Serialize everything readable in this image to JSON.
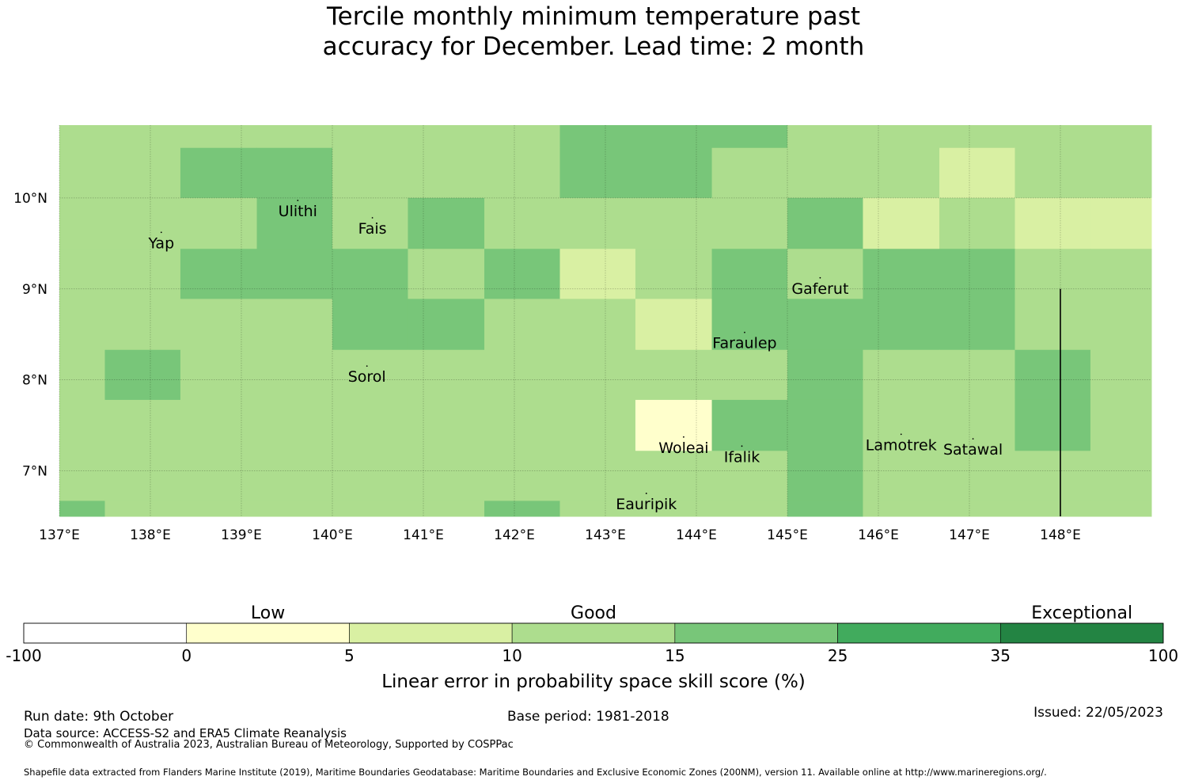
{
  "title": {
    "line1": "Tercile monthly minimum temperature past",
    "line2": "accuracy for December. Lead time: 2 month"
  },
  "map": {
    "lon_range": [
      137.0,
      149.0
    ],
    "lat_range": [
      6.5,
      10.8
    ],
    "lon_ticks": [
      {
        "value": 137,
        "label": "137°E"
      },
      {
        "value": 138,
        "label": "138°E"
      },
      {
        "value": 139,
        "label": "139°E"
      },
      {
        "value": 140,
        "label": "140°E"
      },
      {
        "value": 141,
        "label": "141°E"
      },
      {
        "value": 142,
        "label": "142°E"
      },
      {
        "value": 143,
        "label": "143°E"
      },
      {
        "value": 144,
        "label": "144°E"
      },
      {
        "value": 145,
        "label": "145°E"
      },
      {
        "value": 146,
        "label": "146°E"
      },
      {
        "value": 147,
        "label": "147°E"
      },
      {
        "value": 148,
        "label": "148°E"
      }
    ],
    "lat_ticks": [
      {
        "value": 10,
        "label": "10°N"
      },
      {
        "value": 9,
        "label": "9°N"
      },
      {
        "value": 8,
        "label": "8°N"
      },
      {
        "value": 7,
        "label": "7°N"
      }
    ],
    "grid_lon_edges": [
      137.0,
      137.5,
      138.33,
      139.17,
      140.0,
      140.83,
      141.67,
      142.5,
      143.33,
      144.17,
      145.0,
      145.83,
      146.67,
      147.5,
      148.33,
      149.0
    ],
    "grid_lat_edges": [
      10.8,
      10.55,
      10.0,
      9.44,
      8.89,
      8.33,
      7.78,
      7.22,
      6.67,
      6.5
    ],
    "skill_class_grid": [
      [
        3,
        3,
        3,
        3,
        3,
        3,
        3,
        4,
        4,
        4,
        3,
        3,
        3,
        3,
        3
      ],
      [
        3,
        3,
        4,
        4,
        3,
        3,
        3,
        4,
        4,
        3,
        3,
        3,
        2,
        3,
        3
      ],
      [
        3,
        3,
        3,
        4,
        3,
        4,
        3,
        3,
        3,
        3,
        4,
        2,
        3,
        2,
        2
      ],
      [
        3,
        3,
        4,
        4,
        4,
        3,
        4,
        2,
        3,
        4,
        3,
        4,
        4,
        3,
        3
      ],
      [
        3,
        3,
        3,
        3,
        4,
        4,
        3,
        3,
        2,
        4,
        4,
        4,
        4,
        3,
        3
      ],
      [
        3,
        4,
        3,
        3,
        3,
        3,
        3,
        3,
        3,
        3,
        4,
        3,
        3,
        4,
        3
      ],
      [
        3,
        3,
        3,
        3,
        3,
        3,
        3,
        3,
        1,
        4,
        4,
        3,
        3,
        4,
        3
      ],
      [
        3,
        3,
        3,
        3,
        3,
        3,
        3,
        3,
        3,
        3,
        4,
        3,
        3,
        3,
        3
      ],
      [
        4,
        3,
        3,
        3,
        3,
        3,
        4,
        3,
        3,
        3,
        4,
        3,
        3,
        3,
        3
      ]
    ],
    "places": [
      {
        "name": "Yap",
        "lon": 138.12,
        "lat": 9.5
      },
      {
        "name": "Ulithi",
        "lon": 139.62,
        "lat": 9.85
      },
      {
        "name": "Fais",
        "lon": 140.44,
        "lat": 9.66
      },
      {
        "name": "Gaferut",
        "lon": 145.36,
        "lat": 9.0
      },
      {
        "name": "Faraulep",
        "lon": 144.53,
        "lat": 8.4
      },
      {
        "name": "Sorol",
        "lon": 140.38,
        "lat": 8.03
      },
      {
        "name": "Woleai",
        "lon": 143.86,
        "lat": 7.25
      },
      {
        "name": "Ifalik",
        "lon": 144.5,
        "lat": 7.15
      },
      {
        "name": "Lamotrek",
        "lon": 146.25,
        "lat": 7.28
      },
      {
        "name": "Satawal",
        "lon": 147.04,
        "lat": 7.23
      },
      {
        "name": "Eauripik",
        "lon": 143.45,
        "lat": 6.63
      }
    ],
    "boundary_line": {
      "lon": 148.0,
      "lat_from": 6.5,
      "lat_to": 9.0
    }
  },
  "colorbar": {
    "classes": [
      {
        "from": "-100",
        "to": "0",
        "color": "#ffffff"
      },
      {
        "from": "0",
        "to": "5",
        "color": "#ffffcc"
      },
      {
        "from": "5",
        "to": "10",
        "color": "#d9f0a3"
      },
      {
        "from": "10",
        "to": "15",
        "color": "#addd8e"
      },
      {
        "from": "15",
        "to": "25",
        "color": "#78c679"
      },
      {
        "from": "25",
        "to": "35",
        "color": "#41ab5d"
      },
      {
        "from": "35",
        "to": "100",
        "color": "#238443"
      }
    ],
    "tick_labels": [
      "-100",
      "0",
      "5",
      "10",
      "15",
      "25",
      "35",
      "100"
    ],
    "category_words": [
      {
        "text": "Low",
        "over_class": 1
      },
      {
        "text": "Good",
        "over_class": 3
      },
      {
        "text": "Exceptional",
        "over_class": 6
      }
    ],
    "title": "Linear error in probability space skill score (%)"
  },
  "footer": {
    "run_date": "Run date: 9th October",
    "base_period": "Base period: 1981-2018",
    "issued": "Issued: 22/05/2023",
    "data_source": "Data source: ACCESS-S2 and ERA5 Climate Reanalysis",
    "copyright": "© Commonwealth of Australia 2023, Australian Bureau of Meteorology, Supported by COSPPac",
    "shapefile": "Shapefile data extracted from Flanders Marine Institute (2019), Maritime Boundaries Geodatabase: Maritime Boundaries and Exclusive Economic Zones (200NM), version 11. Available online at http://www.marineregions.org/."
  }
}
